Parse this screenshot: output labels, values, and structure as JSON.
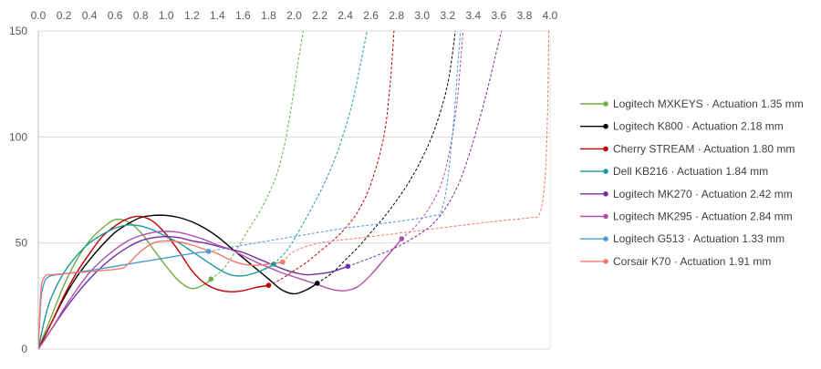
{
  "chart_data": {
    "type": "line",
    "title": "",
    "xlabel": "",
    "ylabel": "",
    "xlim": [
      0,
      4.0
    ],
    "ylim": [
      0,
      150
    ],
    "x_ticks": [
      "0.0",
      "0.2",
      "0.4",
      "0.6",
      "0.8",
      "1.0",
      "1.2",
      "1.4",
      "1.6",
      "1.8",
      "2.0",
      "2.2",
      "2.4",
      "2.6",
      "2.8",
      "3.0",
      "3.2",
      "3.4",
      "3.6",
      "3.8",
      "4.0"
    ],
    "y_ticks": [
      "0",
      "50",
      "100",
      "150"
    ],
    "x_axis_position": "top",
    "grid": "horizontal",
    "legend_position": "right",
    "series": [
      {
        "name": "Logitech MXKEYS",
        "actuation_label": "Actuation 1.35 mm",
        "color": "#70ad47",
        "actuation": [
          1.35,
          33
        ],
        "solid": [
          [
            0,
            0
          ],
          [
            0.1,
            15
          ],
          [
            0.2,
            30
          ],
          [
            0.3,
            42
          ],
          [
            0.4,
            51
          ],
          [
            0.5,
            57
          ],
          [
            0.6,
            61
          ],
          [
            0.7,
            60
          ],
          [
            0.8,
            55
          ],
          [
            0.9,
            47
          ],
          [
            1.0,
            39
          ],
          [
            1.1,
            32
          ],
          [
            1.2,
            28.5
          ],
          [
            1.3,
            30.5
          ],
          [
            1.35,
            33
          ]
        ],
        "dashed": [
          [
            1.35,
            33
          ],
          [
            1.45,
            38
          ],
          [
            1.55,
            47
          ],
          [
            1.65,
            57
          ],
          [
            1.75,
            67
          ],
          [
            1.85,
            80
          ],
          [
            1.92,
            95
          ],
          [
            1.98,
            115
          ],
          [
            2.03,
            135
          ],
          [
            2.07,
            150
          ]
        ]
      },
      {
        "name": "Logitech K800",
        "actuation_label": "Actuation 2.18 mm",
        "color": "#000000",
        "actuation": [
          2.18,
          31
        ],
        "solid": [
          [
            0,
            0
          ],
          [
            0.1,
            12
          ],
          [
            0.2,
            24
          ],
          [
            0.3,
            34
          ],
          [
            0.4,
            42
          ],
          [
            0.5,
            49
          ],
          [
            0.6,
            55
          ],
          [
            0.7,
            59
          ],
          [
            0.8,
            62
          ],
          [
            0.9,
            63
          ],
          [
            1.0,
            63
          ],
          [
            1.1,
            62
          ],
          [
            1.2,
            60
          ],
          [
            1.3,
            57
          ],
          [
            1.4,
            53
          ],
          [
            1.5,
            48
          ],
          [
            1.6,
            43
          ],
          [
            1.7,
            38
          ],
          [
            1.8,
            33
          ],
          [
            1.9,
            28
          ],
          [
            2.0,
            26
          ],
          [
            2.1,
            28
          ],
          [
            2.18,
            31
          ]
        ],
        "dashed": [
          [
            2.18,
            31
          ],
          [
            2.3,
            36
          ],
          [
            2.4,
            42
          ],
          [
            2.5,
            48
          ],
          [
            2.6,
            55
          ],
          [
            2.7,
            62
          ],
          [
            2.8,
            70
          ],
          [
            2.9,
            79
          ],
          [
            3.0,
            90
          ],
          [
            3.1,
            104
          ],
          [
            3.2,
            125
          ],
          [
            3.26,
            150
          ]
        ]
      },
      {
        "name": "Cherry STREAM",
        "actuation_label": "Actuation 1.80 mm",
        "color": "#c00000",
        "actuation": [
          1.8,
          30
        ],
        "solid": [
          [
            0,
            0
          ],
          [
            0.1,
            12
          ],
          [
            0.2,
            25
          ],
          [
            0.3,
            36
          ],
          [
            0.4,
            45
          ],
          [
            0.5,
            53
          ],
          [
            0.6,
            58
          ],
          [
            0.7,
            61.5
          ],
          [
            0.8,
            62.5
          ],
          [
            0.9,
            60
          ],
          [
            1.0,
            54
          ],
          [
            1.1,
            46
          ],
          [
            1.2,
            37
          ],
          [
            1.3,
            31
          ],
          [
            1.4,
            28
          ],
          [
            1.5,
            27
          ],
          [
            1.6,
            27.5
          ],
          [
            1.7,
            29
          ],
          [
            1.8,
            30
          ]
        ],
        "dashed": [
          [
            1.8,
            30
          ],
          [
            1.9,
            33
          ],
          [
            2.0,
            37
          ],
          [
            2.1,
            41
          ],
          [
            2.2,
            46
          ],
          [
            2.3,
            51
          ],
          [
            2.4,
            57
          ],
          [
            2.5,
            65
          ],
          [
            2.6,
            78
          ],
          [
            2.7,
            100
          ],
          [
            2.75,
            125
          ],
          [
            2.78,
            150
          ]
        ]
      },
      {
        "name": "Dell KB216",
        "actuation_label": "Actuation 1.84 mm",
        "color": "#1a9a9a",
        "actuation": [
          1.84,
          40
        ],
        "solid": [
          [
            0,
            0
          ],
          [
            0.05,
            14
          ],
          [
            0.1,
            24
          ],
          [
            0.2,
            36
          ],
          [
            0.3,
            44
          ],
          [
            0.4,
            50
          ],
          [
            0.5,
            54
          ],
          [
            0.6,
            57
          ],
          [
            0.7,
            58.5
          ],
          [
            0.8,
            58
          ],
          [
            0.9,
            56
          ],
          [
            1.0,
            53
          ],
          [
            1.1,
            50
          ],
          [
            1.2,
            46
          ],
          [
            1.3,
            42
          ],
          [
            1.4,
            38
          ],
          [
            1.5,
            35
          ],
          [
            1.6,
            34.5
          ],
          [
            1.7,
            36
          ],
          [
            1.8,
            38.5
          ],
          [
            1.84,
            40
          ]
        ],
        "dashed": [
          [
            1.84,
            40
          ],
          [
            1.95,
            47
          ],
          [
            2.05,
            57
          ],
          [
            2.15,
            68
          ],
          [
            2.25,
            80
          ],
          [
            2.35,
            95
          ],
          [
            2.45,
            115
          ],
          [
            2.52,
            135
          ],
          [
            2.57,
            150
          ]
        ]
      },
      {
        "name": "Logitech MK270",
        "actuation_label": "Actuation 2.42 mm",
        "color": "#7030a0",
        "actuation": [
          2.42,
          39
        ],
        "solid": [
          [
            0,
            0
          ],
          [
            0.1,
            9
          ],
          [
            0.2,
            18
          ],
          [
            0.3,
            26
          ],
          [
            0.4,
            33
          ],
          [
            0.5,
            39
          ],
          [
            0.6,
            44
          ],
          [
            0.7,
            48
          ],
          [
            0.8,
            51
          ],
          [
            0.9,
            52.5
          ],
          [
            1.0,
            53
          ],
          [
            1.1,
            52.5
          ],
          [
            1.2,
            51
          ],
          [
            1.3,
            50
          ],
          [
            1.4,
            48.5
          ],
          [
            1.5,
            47
          ],
          [
            1.6,
            45.5
          ],
          [
            1.7,
            43
          ],
          [
            1.8,
            40.5
          ],
          [
            1.9,
            38
          ],
          [
            2.0,
            36
          ],
          [
            2.1,
            35
          ],
          [
            2.2,
            35.5
          ],
          [
            2.3,
            36.5
          ],
          [
            2.42,
            39
          ]
        ],
        "dashed": [
          [
            2.42,
            39
          ],
          [
            2.6,
            43
          ],
          [
            2.8,
            48
          ],
          [
            3.0,
            55
          ],
          [
            3.1,
            60
          ],
          [
            3.2,
            68
          ],
          [
            3.3,
            80
          ],
          [
            3.4,
            98
          ],
          [
            3.5,
            120
          ],
          [
            3.58,
            140
          ],
          [
            3.62,
            150
          ]
        ]
      },
      {
        "name": "Logitech MK295",
        "actuation_label": "Actuation 2.84 mm",
        "color": "#b04fae",
        "actuation": [
          2.84,
          52
        ],
        "solid": [
          [
            0,
            0
          ],
          [
            0.1,
            9
          ],
          [
            0.2,
            19
          ],
          [
            0.3,
            28
          ],
          [
            0.4,
            36
          ],
          [
            0.5,
            42
          ],
          [
            0.6,
            47
          ],
          [
            0.7,
            51
          ],
          [
            0.8,
            53.5
          ],
          [
            0.9,
            55
          ],
          [
            1.0,
            55.5
          ],
          [
            1.1,
            55
          ],
          [
            1.2,
            53.5
          ],
          [
            1.3,
            51.5
          ],
          [
            1.4,
            49
          ],
          [
            1.5,
            47
          ],
          [
            1.6,
            44
          ],
          [
            1.7,
            41
          ],
          [
            1.8,
            38.5
          ],
          [
            1.9,
            36
          ],
          [
            2.0,
            34
          ],
          [
            2.1,
            32
          ],
          [
            2.2,
            30
          ],
          [
            2.3,
            28
          ],
          [
            2.4,
            27.5
          ],
          [
            2.5,
            29.5
          ],
          [
            2.6,
            35
          ],
          [
            2.7,
            42
          ],
          [
            2.8,
            49
          ],
          [
            2.84,
            52
          ]
        ],
        "dashed": [
          [
            2.84,
            52
          ],
          [
            2.95,
            58
          ],
          [
            3.05,
            66
          ],
          [
            3.15,
            78
          ],
          [
            3.22,
            95
          ],
          [
            3.27,
            115
          ],
          [
            3.3,
            135
          ],
          [
            3.32,
            150
          ]
        ]
      },
      {
        "name": "Logitech G513",
        "actuation_label": "Actuation 1.33 mm",
        "color": "#4a9bd4",
        "actuation": [
          1.33,
          46
        ],
        "solid": [
          [
            0,
            0
          ],
          [
            0.02,
            23
          ],
          [
            0.04,
            30
          ],
          [
            0.06,
            33
          ],
          [
            0.1,
            34.5
          ],
          [
            0.2,
            35.5
          ],
          [
            0.4,
            37
          ],
          [
            0.6,
            39
          ],
          [
            0.8,
            41
          ],
          [
            1.0,
            43
          ],
          [
            1.2,
            45
          ],
          [
            1.33,
            46
          ]
        ],
        "dashed": [
          [
            1.33,
            46
          ],
          [
            1.6,
            49
          ],
          [
            2.0,
            53
          ],
          [
            2.4,
            57
          ],
          [
            2.8,
            60
          ],
          [
            3.1,
            63
          ],
          [
            3.15,
            65
          ],
          [
            3.2,
            80
          ],
          [
            3.25,
            110
          ],
          [
            3.28,
            135
          ],
          [
            3.3,
            150
          ]
        ]
      },
      {
        "name": "Corsair K70",
        "actuation_label": "Actuation 1.91 mm",
        "color": "#f4776e",
        "actuation": [
          1.91,
          41
        ],
        "solid": [
          [
            0,
            0
          ],
          [
            0.02,
            27
          ],
          [
            0.04,
            33
          ],
          [
            0.07,
            35
          ],
          [
            0.1,
            35
          ],
          [
            0.3,
            36
          ],
          [
            0.5,
            37
          ],
          [
            0.65,
            38
          ],
          [
            0.7,
            40
          ],
          [
            0.8,
            46
          ],
          [
            0.9,
            50
          ],
          [
            1.0,
            51
          ],
          [
            1.1,
            50.5
          ],
          [
            1.2,
            49
          ],
          [
            1.3,
            47
          ],
          [
            1.4,
            45
          ],
          [
            1.5,
            42
          ],
          [
            1.6,
            40
          ],
          [
            1.7,
            39.5
          ],
          [
            1.8,
            40
          ],
          [
            1.91,
            41
          ]
        ],
        "dashed": [
          [
            1.91,
            41
          ],
          [
            2.0,
            46
          ],
          [
            2.2,
            50
          ],
          [
            2.6,
            53
          ],
          [
            3.0,
            56
          ],
          [
            3.4,
            59
          ],
          [
            3.7,
            61
          ],
          [
            3.85,
            62
          ],
          [
            3.92,
            64
          ],
          [
            3.96,
            80
          ],
          [
            3.98,
            110
          ],
          [
            3.99,
            150
          ]
        ]
      }
    ]
  }
}
